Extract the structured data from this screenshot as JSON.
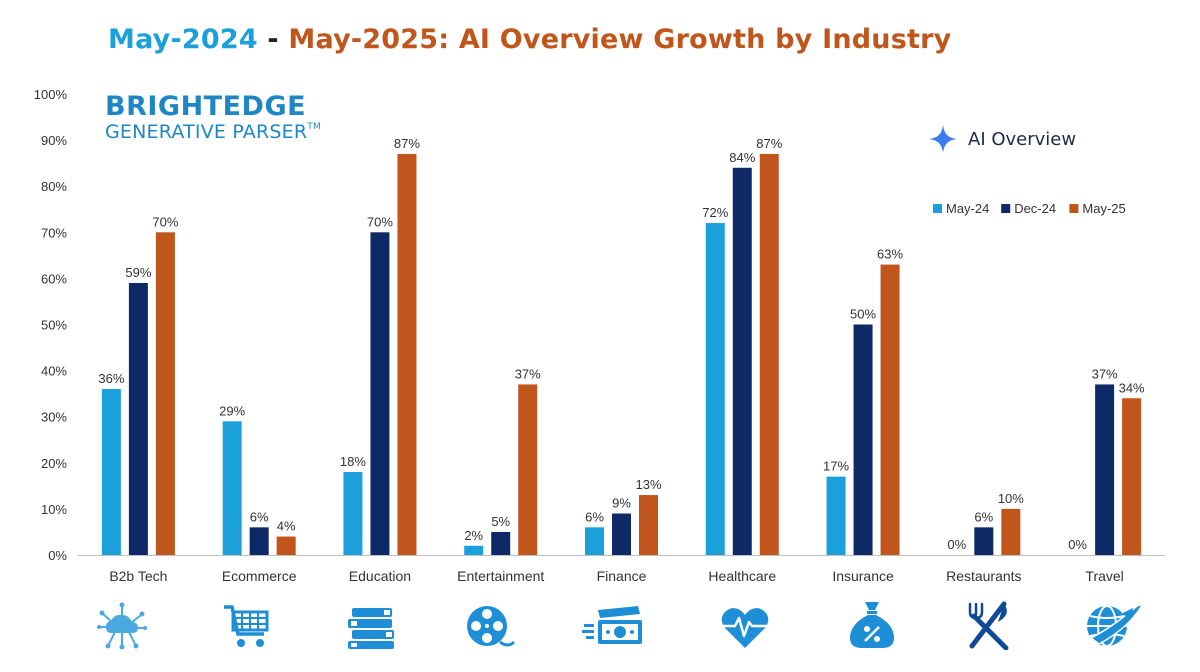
{
  "title": {
    "part1": "May-2024",
    "sep": " - ",
    "part2": "May-2025: AI Overview Growth by Industry",
    "color1": "#1ba0dc",
    "color2": "#c0561b",
    "sep_color": "#222222"
  },
  "brand": {
    "name": "BRIGHTEDGE",
    "product": "GENERATIVE PARSER",
    "tm": "TM",
    "color": "#1e86c5"
  },
  "ai_overview": {
    "label": "AI Overview",
    "icon": "sparkle-icon",
    "color": "#3b7ded"
  },
  "chart_data": {
    "type": "bar",
    "categories": [
      "B2b Tech",
      "Ecommerce",
      "Education",
      "Entertainment",
      "Finance",
      "Healthcare",
      "Insurance",
      "Restaurants",
      "Travel"
    ],
    "series": [
      {
        "name": "May-24",
        "color": "#1ba0dc",
        "values": [
          36,
          29,
          18,
          2,
          6,
          72,
          17,
          0,
          0
        ]
      },
      {
        "name": "Dec-24",
        "color": "#0e2a66",
        "values": [
          59,
          6,
          70,
          5,
          9,
          84,
          50,
          6,
          37
        ]
      },
      {
        "name": "May-25",
        "color": "#c0561b",
        "values": [
          70,
          4,
          87,
          37,
          13,
          87,
          63,
          10,
          34
        ]
      }
    ],
    "ylim": [
      0,
      100
    ],
    "yticks": [
      "0%",
      "10%",
      "20%",
      "30%",
      "40%",
      "50%",
      "60%",
      "70%",
      "80%",
      "90%",
      "100%"
    ],
    "value_suffix": "%",
    "grid": false,
    "legend": "right"
  },
  "category_icons": [
    "cloud-network-icon",
    "shopping-cart-icon",
    "books-icon",
    "film-reel-icon",
    "money-icon",
    "heart-pulse-icon",
    "money-bag-icon",
    "fork-knife-icon",
    "globe-plane-icon"
  ]
}
